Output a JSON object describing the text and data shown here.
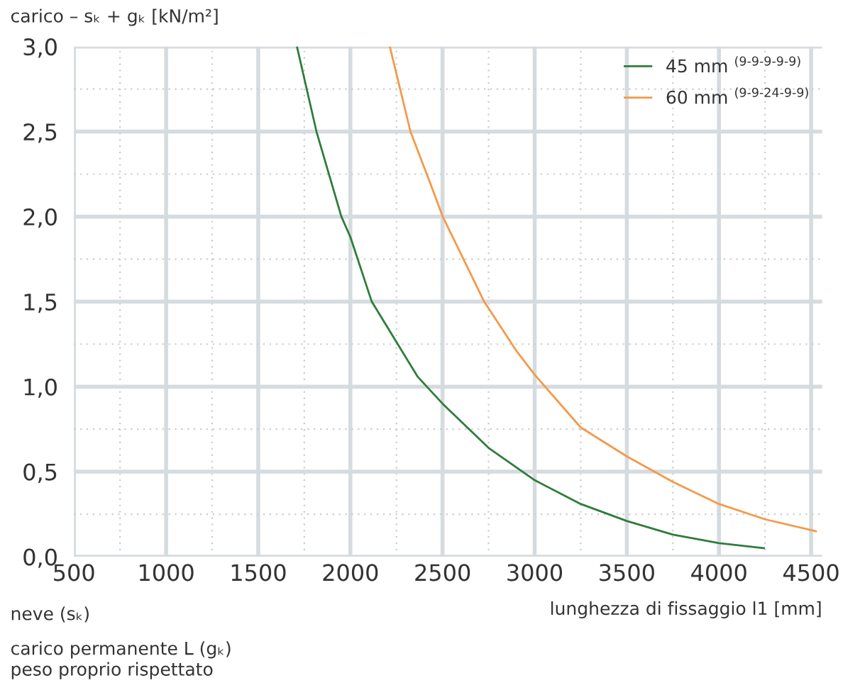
{
  "chart_data": {
    "type": "line",
    "ylabel": "carico – sₖ + gₖ [kN/m²]",
    "xlabel": "lunghezza di fissaggio l1 [mm]",
    "annotations": [
      "neve (sₖ)",
      "carico permanente L (gₖ)",
      "peso proprio rispettato"
    ],
    "xlim": [
      500,
      4560
    ],
    "xticks": [
      500,
      {
        "value": 750,
        "label": null
      },
      1000,
      {
        "value": 1250,
        "label": null
      },
      1500,
      {
        "value": 1750,
        "label": null
      },
      2000,
      {
        "value": 2250,
        "label": null
      },
      2500,
      {
        "value": 2750,
        "label": null
      },
      3000,
      {
        "value": 3250,
        "label": null
      },
      3500,
      {
        "value": 3750,
        "label": null
      },
      4000,
      {
        "value": 4250,
        "label": null
      },
      4500
    ],
    "ylim": [
      0,
      3.0
    ],
    "yticks": [
      {
        "value": 0,
        "label": "0,0"
      },
      {
        "value": 0.25,
        "label": null
      },
      {
        "value": 0.5,
        "label": "0,5"
      },
      {
        "value": 0.75,
        "label": null
      },
      {
        "value": 1.0,
        "label": "1,0"
      },
      {
        "value": 1.25,
        "label": null
      },
      {
        "value": 1.5,
        "label": "1,5"
      },
      {
        "value": 1.75,
        "label": null
      },
      {
        "value": 2.0,
        "label": "2,0"
      },
      {
        "value": 2.25,
        "label": null
      },
      {
        "value": 2.5,
        "label": "2,5"
      },
      {
        "value": 2.75,
        "label": null
      },
      {
        "value": 3.0,
        "label": "3,0"
      }
    ],
    "grid": true,
    "legend": "top right",
    "series": [
      {
        "name": "45 mm $^{(9-9-9-9-9)}$",
        "color": "#2e7d3a",
        "x": [
          1710,
          1816,
          1951,
          2000,
          2116,
          2364,
          2500,
          2750,
          3000,
          3250,
          3500,
          3750,
          4000,
          4244
        ],
        "values": [
          3.0,
          2.5,
          2.0,
          1.88,
          1.5,
          1.06,
          0.9,
          0.64,
          0.45,
          0.31,
          0.21,
          0.13,
          0.08,
          0.05
        ]
      },
      {
        "name": "60 mm $^{(9-9-24-9-9)}$",
        "color": "#f39a4a",
        "x": [
          2214,
          2326,
          2439,
          2501,
          2726,
          2901,
          3000,
          3250,
          3500,
          3750,
          4000,
          4250,
          4526
        ],
        "values": [
          3.0,
          2.5,
          2.18,
          2.0,
          1.5,
          1.21,
          1.07,
          0.76,
          0.59,
          0.44,
          0.31,
          0.22,
          0.15
        ]
      }
    ]
  }
}
